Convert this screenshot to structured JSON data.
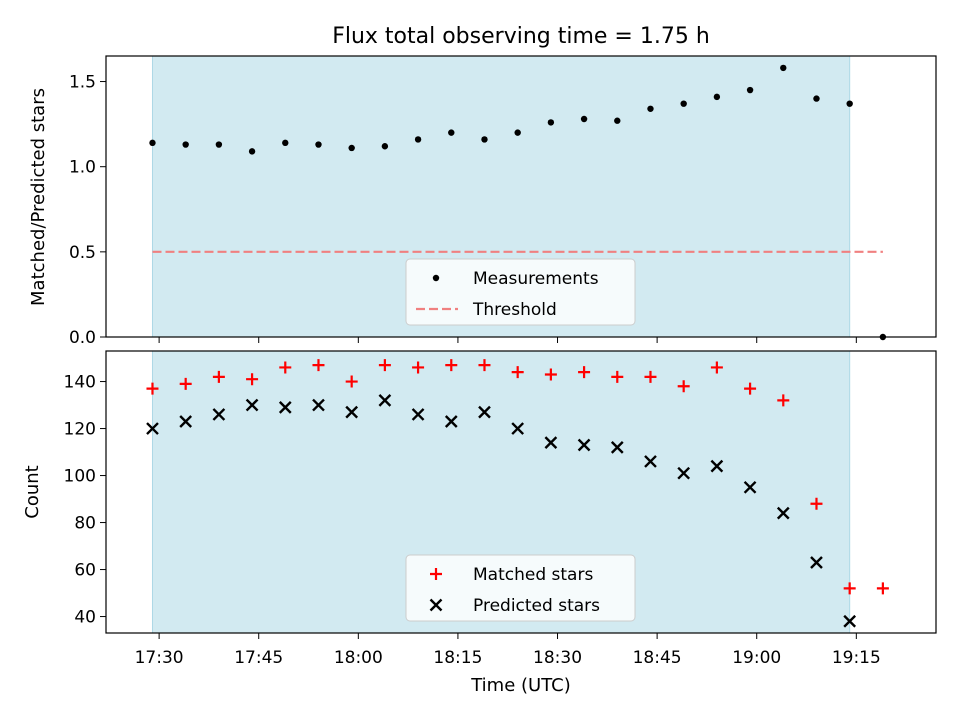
{
  "chart_data": [
    {
      "type": "scatter",
      "title": "Flux total observing time = 1.75 h",
      "ylabel": "Matched/Predicted stars",
      "ylim": [
        0,
        1.65
      ],
      "yticks": [
        "0.0",
        "0.5",
        "1.0",
        "1.5"
      ],
      "x": [
        "17:29",
        "17:34",
        "17:39",
        "17:44",
        "17:49",
        "17:54",
        "17:59",
        "18:04",
        "18:09",
        "18:14",
        "18:19",
        "18:24",
        "18:29",
        "18:34",
        "18:39",
        "18:44",
        "18:49",
        "18:54",
        "18:59",
        "19:04",
        "19:09",
        "19:14",
        "19:19"
      ],
      "series": [
        {
          "name": "Measurements",
          "marker": "dot",
          "color": "#000000",
          "values": [
            1.14,
            1.13,
            1.13,
            1.09,
            1.14,
            1.13,
            1.11,
            1.12,
            1.16,
            1.2,
            1.16,
            1.2,
            1.26,
            1.28,
            1.27,
            1.34,
            1.37,
            1.41,
            1.45,
            1.58,
            1.4,
            1.37,
            0.0
          ]
        },
        {
          "name": "Threshold",
          "marker": "dashed-line",
          "color": "#f08080",
          "values": [
            0.5,
            0.5,
            0.5,
            0.5,
            0.5,
            0.5,
            0.5,
            0.5,
            0.5,
            0.5,
            0.5,
            0.5,
            0.5,
            0.5,
            0.5,
            0.5,
            0.5,
            0.5,
            0.5,
            0.5,
            0.5,
            0.5,
            0.5
          ]
        }
      ],
      "shaded_span": [
        "17:29",
        "19:14"
      ],
      "shade_color": "#add8e6",
      "legend": "lower-center"
    },
    {
      "type": "scatter",
      "xlabel": "Time (UTC)",
      "ylabel": "Count",
      "ylim": [
        33,
        153
      ],
      "yticks": [
        "40",
        "60",
        "80",
        "100",
        "120",
        "140"
      ],
      "xticks": [
        "17:30",
        "17:45",
        "18:00",
        "18:15",
        "18:30",
        "18:45",
        "19:00",
        "19:15"
      ],
      "x": [
        "17:29",
        "17:34",
        "17:39",
        "17:44",
        "17:49",
        "17:54",
        "17:59",
        "18:04",
        "18:09",
        "18:14",
        "18:19",
        "18:24",
        "18:29",
        "18:34",
        "18:39",
        "18:44",
        "18:49",
        "18:54",
        "18:59",
        "19:04",
        "19:09",
        "19:14",
        "19:19"
      ],
      "series": [
        {
          "name": "Matched stars",
          "marker": "plus",
          "color": "#ff0000",
          "values": [
            137,
            139,
            142,
            141,
            146,
            147,
            140,
            147,
            146,
            147,
            147,
            144,
            143,
            144,
            142,
            142,
            138,
            146,
            137,
            132,
            88,
            52,
            52
          ]
        },
        {
          "name": "Predicted stars",
          "marker": "x",
          "color": "#000000",
          "values": [
            120,
            123,
            126,
            130,
            129,
            130,
            127,
            132,
            126,
            123,
            127,
            120,
            114,
            113,
            112,
            106,
            101,
            104,
            95,
            84,
            63,
            38,
            null
          ]
        }
      ],
      "shaded_span": [
        "17:29",
        "19:14"
      ],
      "shade_color": "#add8e6",
      "legend": "lower-center"
    }
  ]
}
